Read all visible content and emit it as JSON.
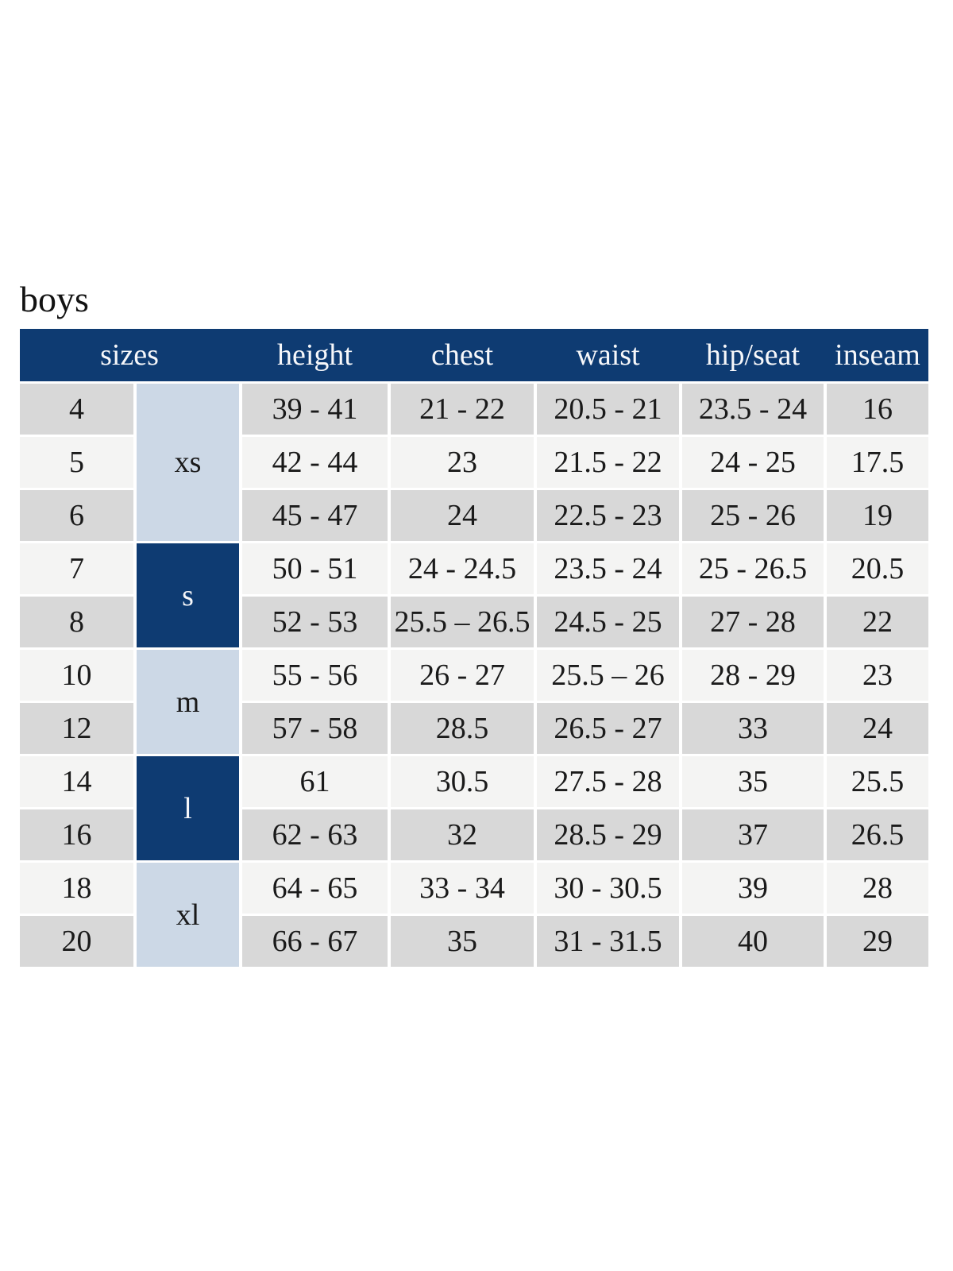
{
  "page": {
    "title": "boys"
  },
  "colors": {
    "header_bg": "#0e3b72",
    "group_navy": "#0e3b72",
    "group_light_blue": "#ccd8e6",
    "row_gray": "#d8d8d8",
    "row_light": "#f4f4f3",
    "header_text": "#f6f7fa",
    "body_text": "#1a1a1a"
  },
  "table": {
    "headers": [
      {
        "key": "sizes",
        "label": "sizes",
        "span": 2
      },
      {
        "key": "height",
        "label": "height",
        "span": 1
      },
      {
        "key": "chest",
        "label": "chest",
        "span": 1
      },
      {
        "key": "waist",
        "label": "waist",
        "span": 1
      },
      {
        "key": "hip_seat",
        "label": "hip/seat",
        "span": 1
      },
      {
        "key": "inseam",
        "label": "inseam",
        "span": 1
      }
    ],
    "size_groups": [
      {
        "label": "xs",
        "row_span": 3,
        "variant": "light-blue"
      },
      {
        "label": "s",
        "row_span": 2,
        "variant": "navy"
      },
      {
        "label": "m",
        "row_span": 2,
        "variant": "light-blue"
      },
      {
        "label": "l",
        "row_span": 2,
        "variant": "navy"
      },
      {
        "label": "xl",
        "row_span": 2,
        "variant": "light-blue"
      }
    ],
    "rows": [
      {
        "size": "4",
        "height": "39 - 41",
        "chest": "21 - 22",
        "waist": "20.5 - 21",
        "hip_seat": "23.5 - 24",
        "inseam": "16"
      },
      {
        "size": "5",
        "height": "42 - 44",
        "chest": "23",
        "waist": "21.5 - 22",
        "hip_seat": "24 - 25",
        "inseam": "17.5"
      },
      {
        "size": "6",
        "height": "45 - 47",
        "chest": "24",
        "waist": "22.5 - 23",
        "hip_seat": "25 - 26",
        "inseam": "19"
      },
      {
        "size": "7",
        "height": "50 - 51",
        "chest": "24 - 24.5",
        "waist": "23.5 - 24",
        "hip_seat": "25 - 26.5",
        "inseam": "20.5"
      },
      {
        "size": "8",
        "height": "52 - 53",
        "chest": "25.5 – 26.5",
        "waist": "24.5 - 25",
        "hip_seat": "27 - 28",
        "inseam": "22"
      },
      {
        "size": "10",
        "height": "55 - 56",
        "chest": "26 - 27",
        "waist": "25.5 – 26",
        "hip_seat": "28 - 29",
        "inseam": "23"
      },
      {
        "size": "12",
        "height": "57 - 58",
        "chest": "28.5",
        "waist": "26.5 - 27",
        "hip_seat": "33",
        "inseam": "24"
      },
      {
        "size": "14",
        "height": "61",
        "chest": "30.5",
        "waist": "27.5 - 28",
        "hip_seat": "35",
        "inseam": "25.5"
      },
      {
        "size": "16",
        "height": "62 - 63",
        "chest": "32",
        "waist": "28.5 - 29",
        "hip_seat": "37",
        "inseam": "26.5"
      },
      {
        "size": "18",
        "height": "64 - 65",
        "chest": "33 - 34",
        "waist": "30 - 30.5",
        "hip_seat": "39",
        "inseam": "28"
      },
      {
        "size": "20",
        "height": "66 - 67",
        "chest": "35",
        "waist": "31 - 31.5",
        "hip_seat": "40",
        "inseam": "29"
      }
    ]
  }
}
